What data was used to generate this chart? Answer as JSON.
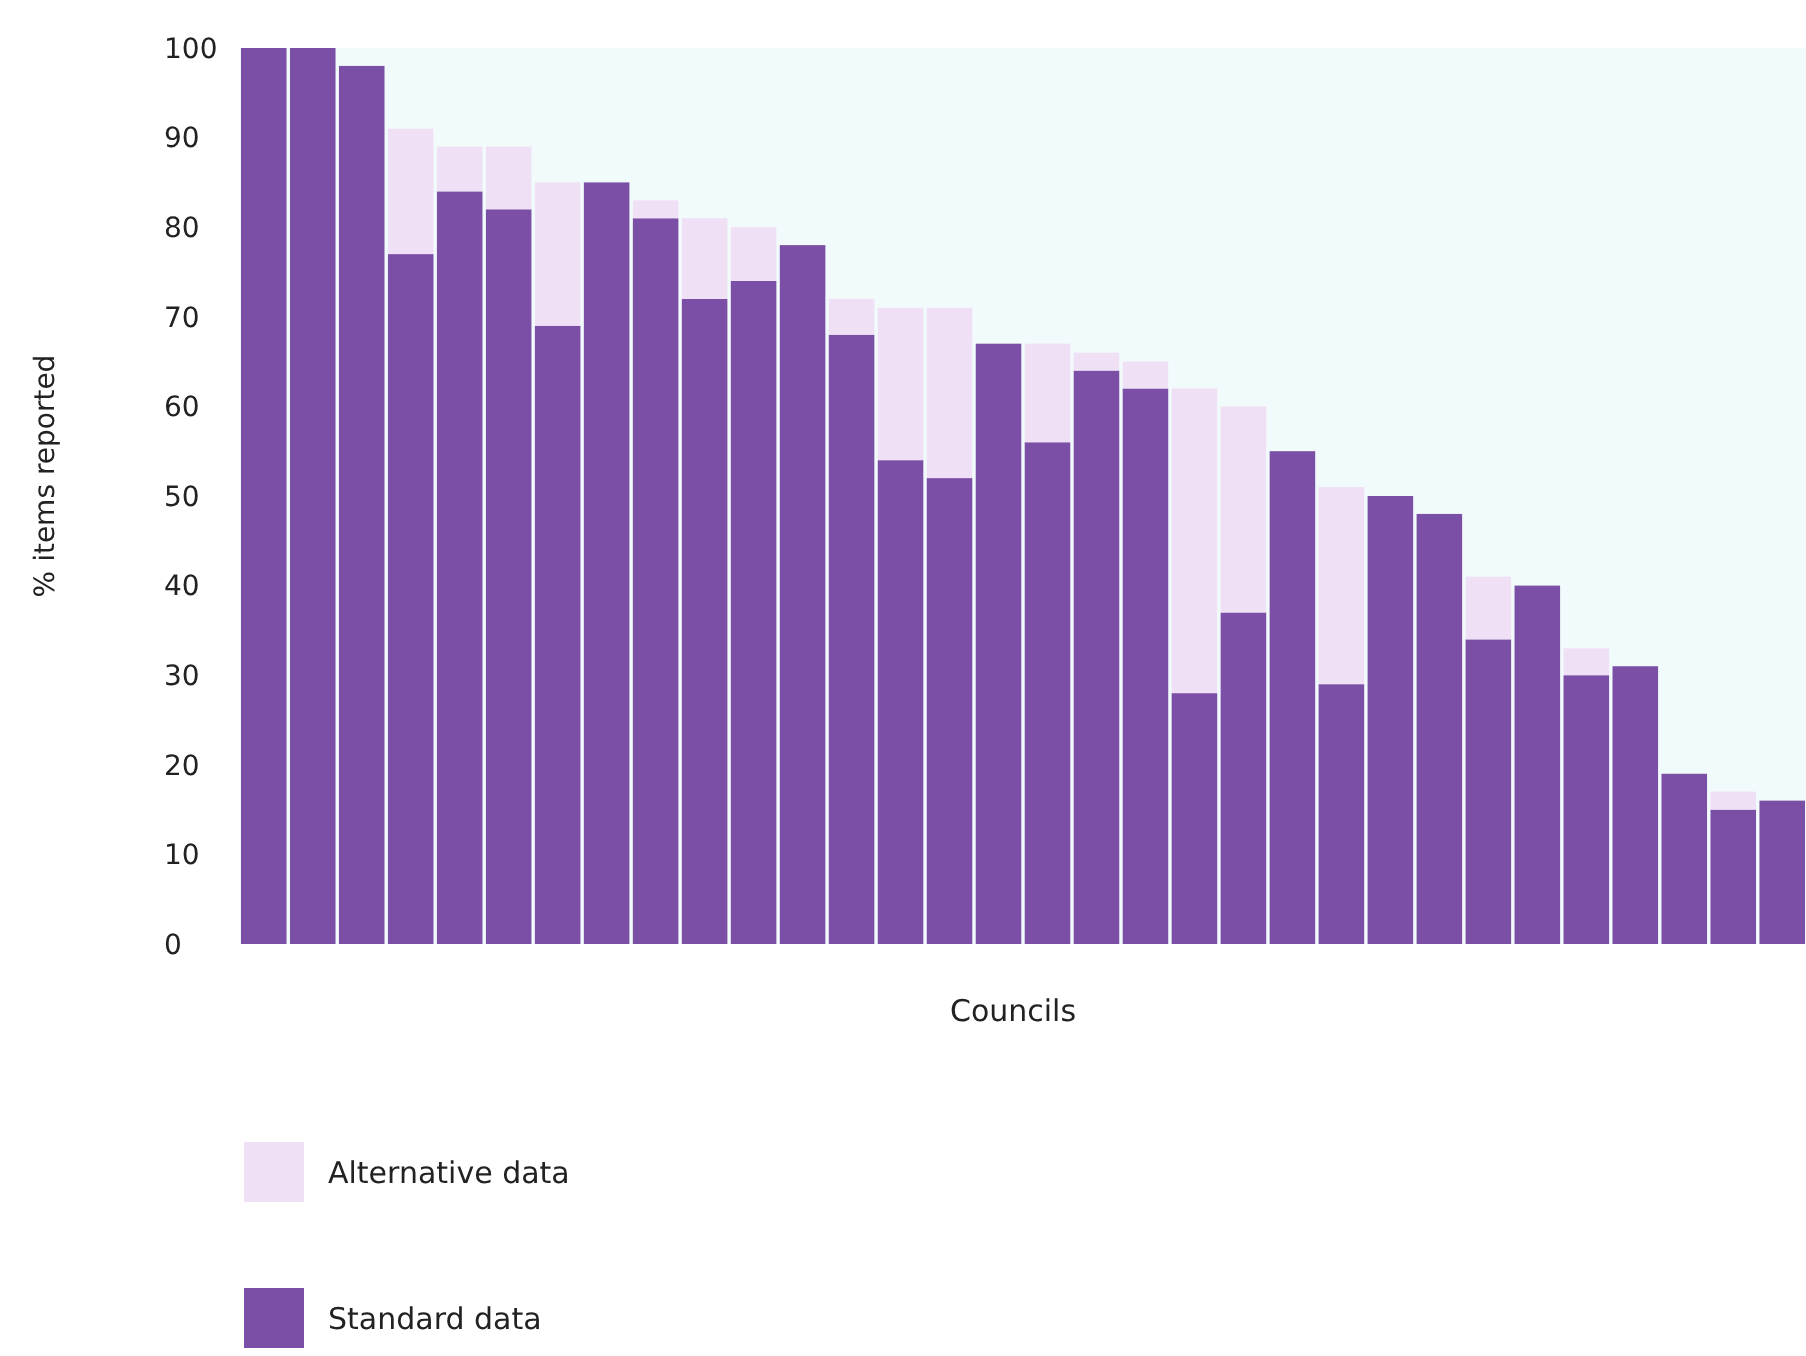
{
  "chart_data": {
    "type": "bar",
    "stacked": true,
    "xlabel": "Councils",
    "ylabel": "% items reported",
    "categories": [
      null,
      null,
      null,
      null,
      null,
      null,
      null,
      null,
      null,
      null,
      null,
      null,
      null,
      null,
      null,
      null,
      null,
      null,
      null,
      null,
      null,
      null,
      null,
      null,
      null,
      null,
      null,
      null,
      null,
      null,
      null,
      null
    ],
    "series": [
      {
        "name": "Standard data",
        "color": "#7b4fa6",
        "values": [
          100,
          100,
          98,
          77,
          84,
          82,
          69,
          85,
          81,
          72,
          74,
          78,
          68,
          54,
          52,
          67,
          56,
          64,
          62,
          28,
          37,
          55,
          29,
          50,
          48,
          34,
          40,
          30,
          31,
          19,
          15,
          16
        ]
      },
      {
        "name": "Alternative data",
        "color": "#f0e0f5",
        "values": [
          0,
          0,
          0,
          14,
          5,
          7,
          16,
          0,
          2,
          9,
          6,
          0,
          4,
          17,
          19,
          0,
          11,
          2,
          3,
          34,
          23,
          0,
          22,
          0,
          0,
          7,
          0,
          3,
          0,
          0,
          2,
          0
        ]
      }
    ],
    "ylim": [
      0,
      100
    ],
    "yticks": [
      0,
      10,
      20,
      30,
      40,
      50,
      60,
      70,
      80,
      90,
      100
    ],
    "grid": false,
    "legend": "bottom"
  }
}
